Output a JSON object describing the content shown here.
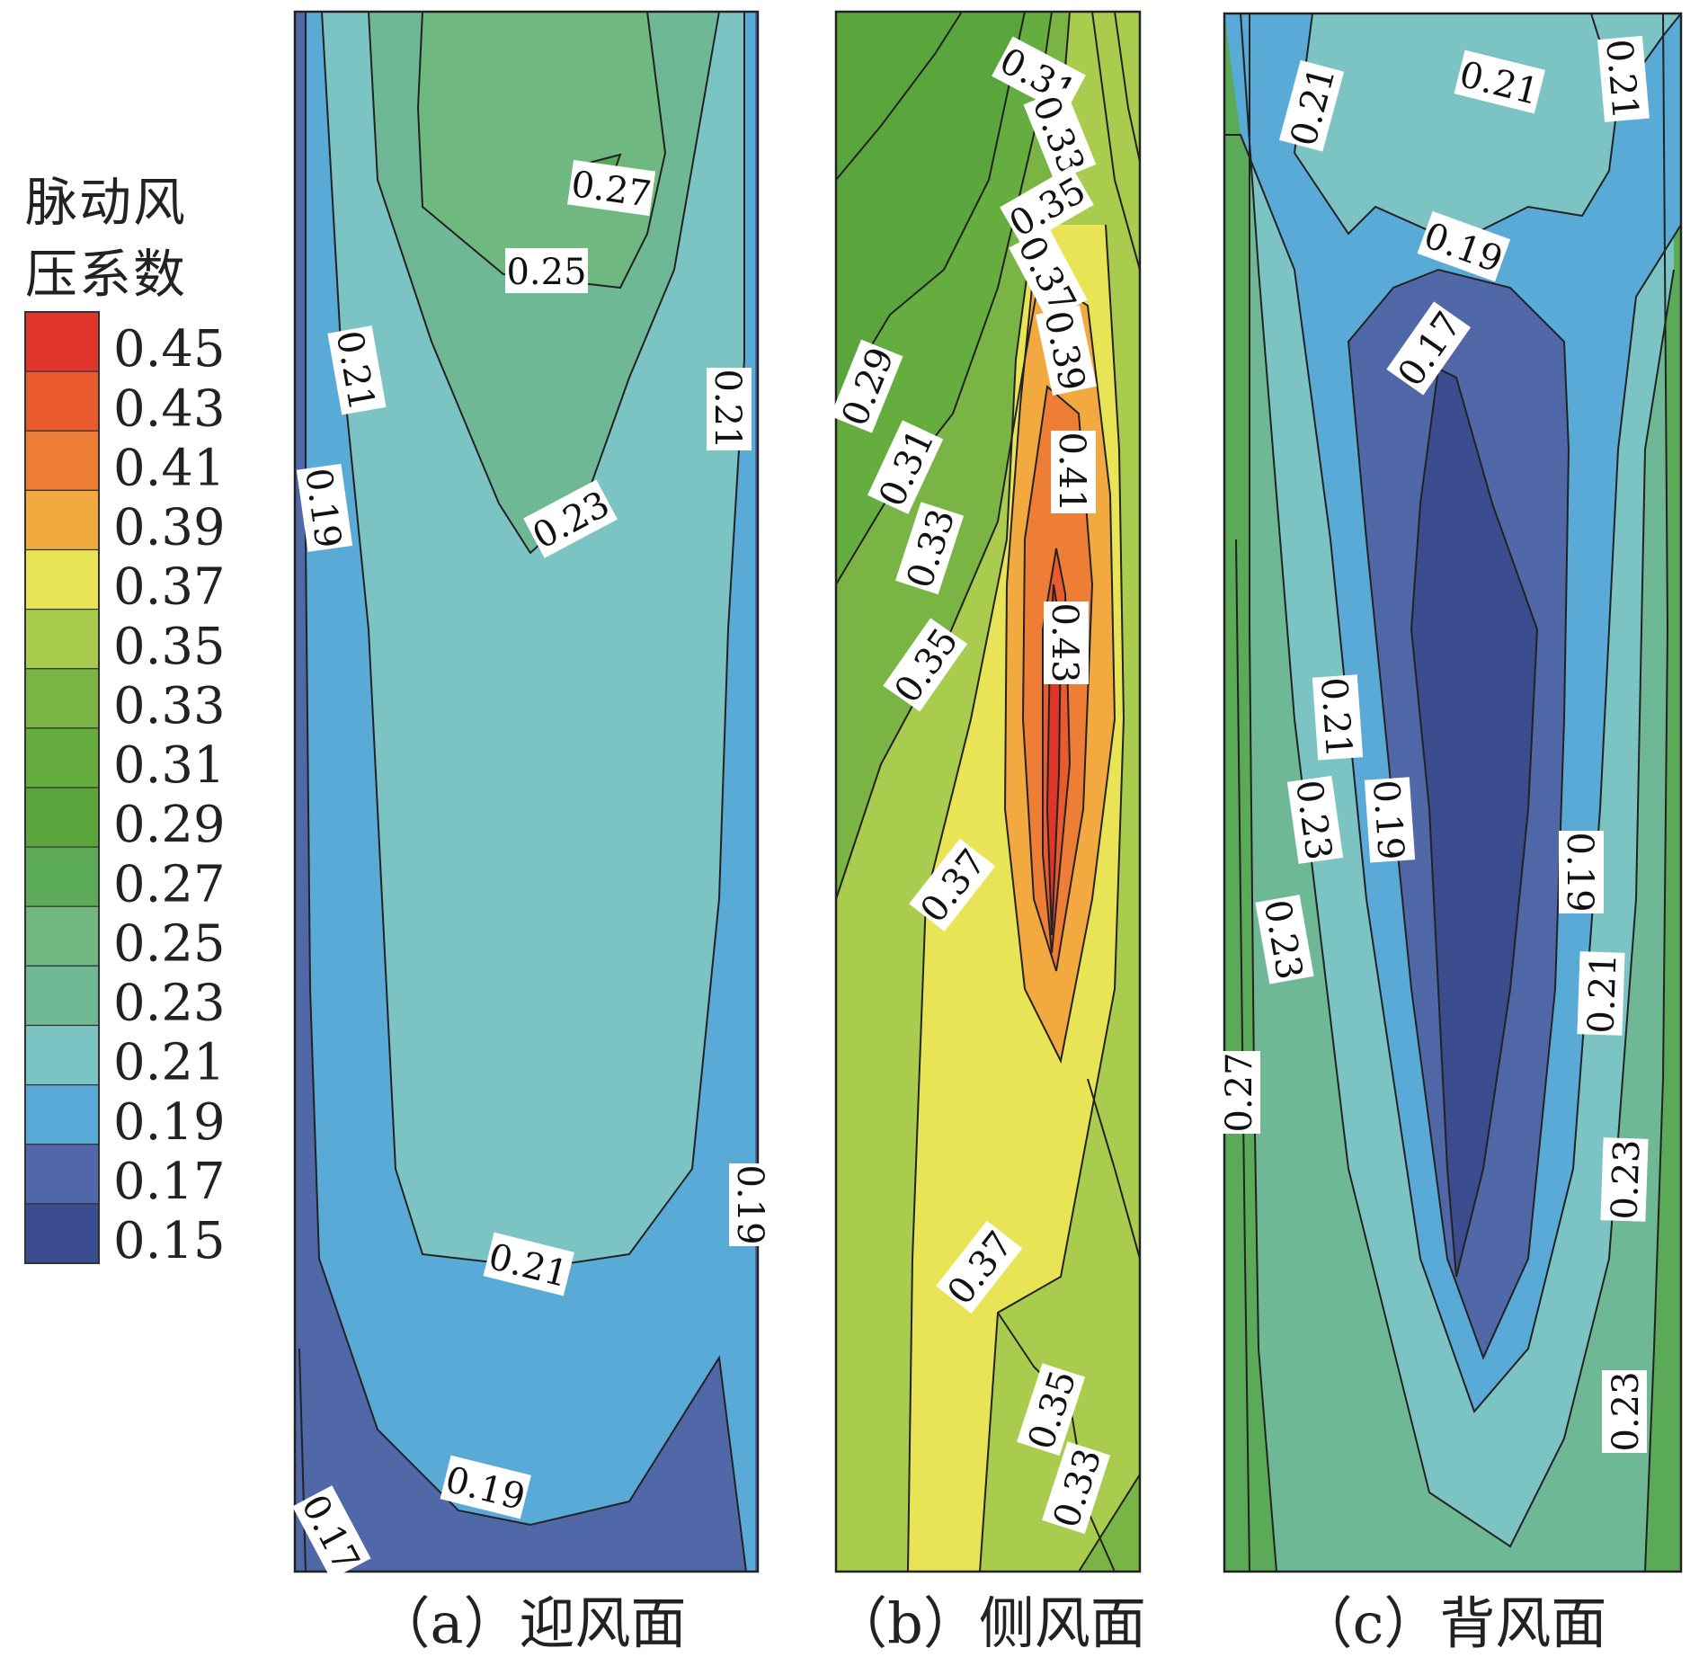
{
  "colorbar": {
    "title_line1": "脉动风",
    "title_line2": "压系数",
    "ticks": [
      "0.45",
      "0.43",
      "0.41",
      "0.39",
      "0.37",
      "0.35",
      "0.33",
      "0.31",
      "0.29",
      "0.27",
      "0.25",
      "0.23",
      "0.21",
      "0.19",
      "0.17",
      "0.15"
    ]
  },
  "chart_data": [
    {
      "type": "contour",
      "caption": "（a）迎风面",
      "levels": [
        0.15,
        0.17,
        0.19,
        0.21,
        0.23,
        0.25,
        0.27,
        0.29,
        0.31,
        0.33,
        0.35,
        0.37,
        0.39,
        0.41,
        0.43,
        0.45
      ],
      "contour_labels": [
        "0.27",
        "0.25",
        "0.21",
        "0.21",
        "0.19",
        "0.23",
        "0.19",
        "0.21",
        "0.19",
        "0.17"
      ],
      "value_range": [
        0.17,
        0.27
      ]
    },
    {
      "type": "contour",
      "caption": "（b）侧风面",
      "levels": [
        0.15,
        0.17,
        0.19,
        0.21,
        0.23,
        0.25,
        0.27,
        0.29,
        0.31,
        0.33,
        0.35,
        0.37,
        0.39,
        0.41,
        0.43,
        0.45
      ],
      "contour_labels": [
        "0.31",
        "0.33",
        "0.35",
        "0.37",
        "0.39",
        "0.29",
        "0.31",
        "0.41",
        "0.33",
        "0.43",
        "0.35",
        "0.37",
        "0.37",
        "0.35",
        "0.33"
      ],
      "value_range": [
        0.29,
        0.44
      ]
    },
    {
      "type": "contour",
      "caption": "（c）背风面",
      "levels": [
        0.15,
        0.17,
        0.19,
        0.21,
        0.23,
        0.25,
        0.27,
        0.29,
        0.31,
        0.33,
        0.35,
        0.37,
        0.39,
        0.41,
        0.43,
        0.45
      ],
      "contour_labels": [
        "0.21",
        "0.21",
        "0.21",
        "0.19",
        "0.17",
        "0.21",
        "0.23",
        "0.19",
        "0.19",
        "0.23",
        "0.21",
        "0.27",
        "0.23",
        "0.23"
      ],
      "value_range": [
        0.15,
        0.27
      ]
    }
  ],
  "colors": {
    "0.15": "#3b4d8f",
    "0.17": "#5068a8",
    "0.19": "#5aaad8",
    "0.21": "#7cc4c4",
    "0.23": "#6fb896",
    "0.25": "#6fb880",
    "0.27": "#5aaa58",
    "0.29": "#5ba63c",
    "0.31": "#66ad40",
    "0.33": "#7ab444",
    "0.35": "#a9cb4e",
    "0.37": "#e9e455",
    "0.39": "#f2a940",
    "0.41": "#ee7e36",
    "0.43": "#e95a2d",
    "0.45": "#e0352a"
  }
}
